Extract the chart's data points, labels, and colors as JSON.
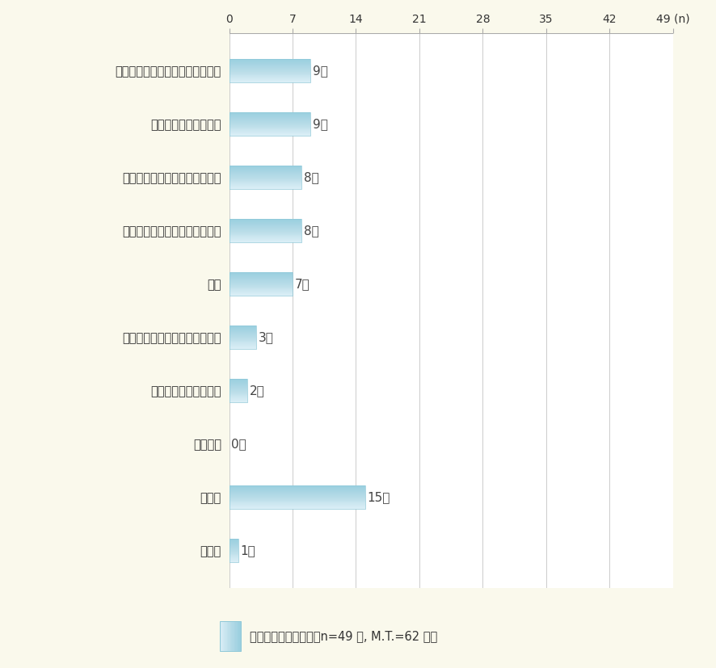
{
  "categories": [
    "不登校（小学校・中学校・高校）",
    "職場になじめなかった",
    "就職活動がうまくいかなかった",
    "人間関係がうまくいかなかった",
    "病気",
    "受験に失敗した（高校・大学）",
    "大学になじめなかった",
    "妊娠した",
    "その他",
    "無回答"
  ],
  "values": [
    9,
    9,
    8,
    8,
    7,
    3,
    2,
    0,
    15,
    1
  ],
  "bar_color_light": "#daeef6",
  "bar_color_mid": "#b8dce8",
  "bar_color_dark": "#9acfdf",
  "background_color": "#faf9ec",
  "plot_background": "#ffffff",
  "legend_label": "広義のひきこもり群（n=49 人, M.T.=62 人）",
  "legend_color": "#b8dce8",
  "xmax": 49,
  "xticks": [
    0,
    7,
    14,
    21,
    28,
    35,
    42,
    49
  ],
  "xlabel_extra": "(n)",
  "value_label_suffix": "人"
}
